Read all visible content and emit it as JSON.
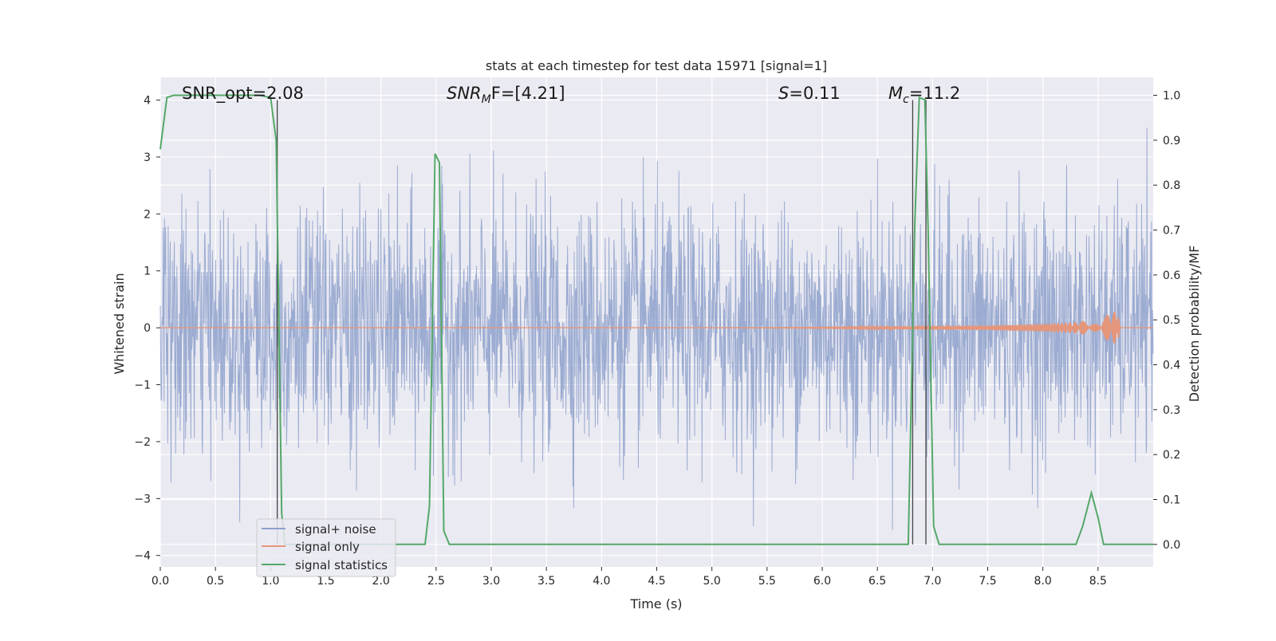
{
  "chart_data": {
    "type": "line",
    "title": "stats at each timestep for test data 15971 [signal=1]",
    "xlabel": "Time (s)",
    "ylabel": "Whitened strain",
    "ylabel_right": "Detection probability/MF",
    "xlim": [
      0.0,
      9.0
    ],
    "ylim": [
      -4.2,
      4.4
    ],
    "ylim_right": [
      -0.05,
      1.04
    ],
    "x_ticks": [
      "0.0",
      "0.5",
      "1.0",
      "1.5",
      "2.0",
      "2.5",
      "3.0",
      "3.5",
      "4.0",
      "4.5",
      "5.0",
      "5.5",
      "6.0",
      "6.5",
      "7.0",
      "7.5",
      "8.0",
      "8.5"
    ],
    "y_ticks": [
      "4",
      "3",
      "2",
      "1",
      "0",
      "−1",
      "−2",
      "−3",
      "−4"
    ],
    "y_ticks_right": [
      "1.0",
      "0.9",
      "0.8",
      "0.7",
      "0.6",
      "0.5",
      "0.4",
      "0.3",
      "0.2",
      "0.1",
      "0.0"
    ],
    "grid": true,
    "legend_position": "lower-left",
    "annotations": [
      {
        "id": "snr-opt",
        "text": "SNR_opt=2.08"
      },
      {
        "id": "snr-mf",
        "main": "SNR",
        "sub": "M",
        "rest": "F=[4.21]"
      },
      {
        "id": "s-value",
        "main": "S",
        "rest": "=0.11"
      },
      {
        "id": "mc-value",
        "main": "M",
        "sub": "c",
        "rest": "=11.2"
      }
    ],
    "vlines_x": [
      1.06,
      6.82,
      6.94
    ],
    "series": [
      {
        "name": "signal+ noise",
        "color": "#8da0cb",
        "axis": "left",
        "style": "dense noise band, roughly gaussian, sigma ~1.0, peaks up to +/-4",
        "x_range": [
          0.0,
          9.0
        ],
        "band_extent": [
          -3.7,
          3.6
        ]
      },
      {
        "name": "signal only",
        "color": "#e5967a",
        "axis": "left",
        "style": "chirp, near zero until ~6.2 s, amplitude grows to ~0.3 at 8.7 s then ends",
        "x": [
          0.0,
          5.0,
          6.0,
          6.5,
          7.0,
          7.5,
          8.0,
          8.3,
          8.5,
          8.62,
          8.68,
          8.7,
          9.0
        ],
        "amplitude": [
          0.0,
          0.0,
          0.01,
          0.02,
          0.03,
          0.04,
          0.07,
          0.1,
          0.16,
          0.25,
          0.32,
          0.0,
          0.0
        ]
      },
      {
        "name": "signal statistics",
        "color": "#55a868",
        "axis": "right",
        "x": [
          0.0,
          0.06,
          0.12,
          0.5,
          0.9,
          1.0,
          1.05,
          1.1,
          1.13,
          1.8,
          2.4,
          2.44,
          2.49,
          2.53,
          2.57,
          2.62,
          6.78,
          6.84,
          6.88,
          6.93,
          6.96,
          7.01,
          7.06,
          8.3,
          8.36,
          8.44,
          8.5,
          8.55,
          9.0
        ],
        "y": [
          0.88,
          0.995,
          1.0,
          1.0,
          1.0,
          0.995,
          0.9,
          0.07,
          0.0,
          0.0,
          0.0,
          0.085,
          0.87,
          0.85,
          0.03,
          0.0,
          0.0,
          0.72,
          0.995,
          0.99,
          0.7,
          0.04,
          0.0,
          0.0,
          0.04,
          0.115,
          0.06,
          0.0,
          0.0
        ]
      }
    ]
  }
}
